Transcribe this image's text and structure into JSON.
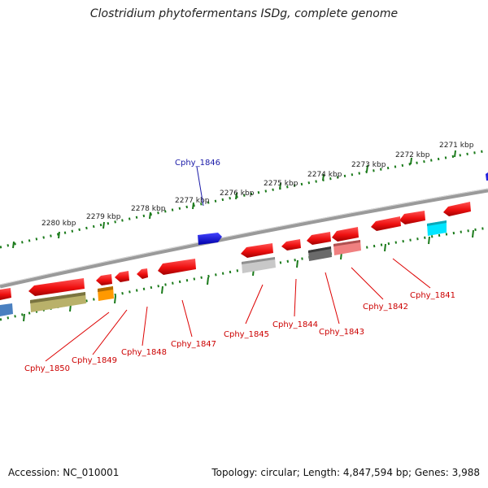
{
  "title": "Clostridium phytofermentans ISDg, complete genome",
  "footer": {
    "accession": "Accession: NC_010001",
    "summary": "Topology: circular; Length: 4,847,594 bp; Genes: 3,988"
  },
  "ruler_labels": [
    "2271 kbp",
    "2272 kbp",
    "2273 kbp",
    "2274 kbp",
    "2275 kbp",
    "2276 kbp",
    "2277 kbp",
    "2278 kbp",
    "2279 kbp",
    "2280 kbp"
  ],
  "gene_labels": {
    "top": [
      {
        "id": "g1846",
        "text": "Cphy_1846"
      }
    ],
    "bottom": [
      {
        "id": "g1850",
        "text": "Cphy_1850"
      },
      {
        "id": "g1849",
        "text": "Cphy_1849"
      },
      {
        "id": "g1848",
        "text": "Cphy_1848"
      },
      {
        "id": "g1847",
        "text": "Cphy_1847"
      },
      {
        "id": "g1845",
        "text": "Cphy_1845"
      },
      {
        "id": "g1844",
        "text": "Cphy_1844"
      },
      {
        "id": "g1843",
        "text": "Cphy_1843"
      },
      {
        "id": "g1842",
        "text": "Cphy_1842"
      },
      {
        "id": "g1841",
        "text": "Cphy_1841"
      }
    ]
  },
  "colors": {
    "forward_gene": "#2222dd",
    "reverse_gene": "#ee1111",
    "ruler_ticks": "#1a7a1a",
    "backbone": "#808080",
    "top_label": "#1a1aa8",
    "bottom_label": "#cc0000",
    "cog_cyan": "#00e5ff",
    "cog_olive": "#b9b16a",
    "cog_orange": "#ff9900",
    "cog_gray": "#666666",
    "cog_lightgray": "#c8c8c8",
    "cog_pink": "#f08080",
    "cog_steelblue": "#4a80c0"
  }
}
